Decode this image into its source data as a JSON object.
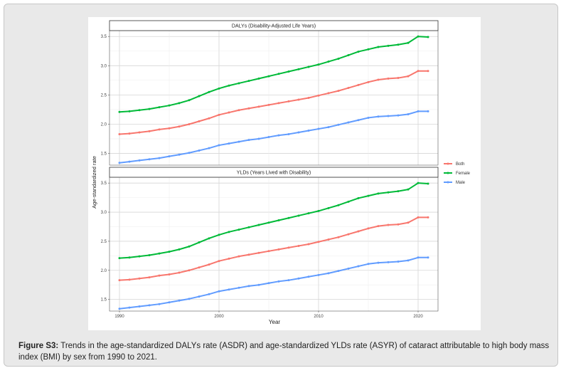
{
  "caption": {
    "label": "Figure S3:",
    "text": "Trends in the age-standardized DALYs rate (ASDR) and age-standardized YLDs rate (ASYR) of cataract attributable to high body mass index (BMI) by sex from 1990 to 2021."
  },
  "chart_data": {
    "type": "line",
    "ylabel": "Age-standardized rate",
    "xlabel": "Year",
    "x": [
      1990,
      1991,
      1992,
      1993,
      1994,
      1995,
      1996,
      1997,
      1998,
      1999,
      2000,
      2001,
      2002,
      2003,
      2004,
      2005,
      2006,
      2007,
      2008,
      2009,
      2010,
      2011,
      2012,
      2013,
      2014,
      2015,
      2016,
      2017,
      2018,
      2019,
      2020,
      2021
    ],
    "xlim": [
      1989,
      2022
    ],
    "xticks": [
      1990,
      2000,
      2010,
      2020
    ],
    "legend": {
      "placement": "right",
      "entries": [
        "Both",
        "Female",
        "Male"
      ]
    },
    "colors": {
      "Both": "#F8766D",
      "Female": "#00BA38",
      "Male": "#619CFF"
    },
    "grid": true,
    "panels": [
      {
        "title": "DALYs (Disability-Adjusted Life Years)",
        "ylim": [
          1.3,
          3.6
        ],
        "yticks": [
          1.5,
          2.0,
          2.5,
          3.0,
          3.5
        ],
        "series": [
          {
            "name": "Both",
            "values": [
              1.83,
              1.84,
              1.86,
              1.88,
              1.91,
              1.93,
              1.96,
              2.0,
              2.05,
              2.1,
              2.16,
              2.2,
              2.24,
              2.27,
              2.3,
              2.33,
              2.36,
              2.39,
              2.42,
              2.45,
              2.49,
              2.53,
              2.57,
              2.62,
              2.67,
              2.72,
              2.76,
              2.78,
              2.79,
              2.82,
              2.91,
              2.91
            ]
          },
          {
            "name": "Female",
            "values": [
              2.21,
              2.22,
              2.24,
              2.26,
              2.29,
              2.32,
              2.36,
              2.41,
              2.48,
              2.55,
              2.61,
              2.66,
              2.7,
              2.74,
              2.78,
              2.82,
              2.86,
              2.9,
              2.94,
              2.98,
              3.02,
              3.07,
              3.12,
              3.18,
              3.24,
              3.28,
              3.32,
              3.34,
              3.36,
              3.39,
              3.5,
              3.49
            ]
          },
          {
            "name": "Male",
            "values": [
              1.34,
              1.36,
              1.38,
              1.4,
              1.42,
              1.45,
              1.48,
              1.51,
              1.55,
              1.59,
              1.64,
              1.67,
              1.7,
              1.73,
              1.75,
              1.78,
              1.81,
              1.83,
              1.86,
              1.89,
              1.92,
              1.95,
              1.99,
              2.03,
              2.07,
              2.11,
              2.13,
              2.14,
              2.15,
              2.17,
              2.22,
              2.22
            ]
          }
        ]
      },
      {
        "title": "YLDs (Years Lived with Disability)",
        "ylim": [
          1.3,
          3.6
        ],
        "yticks": [
          1.5,
          2.0,
          2.5,
          3.0,
          3.5
        ],
        "series": [
          {
            "name": "Both",
            "values": [
              1.83,
              1.84,
              1.86,
              1.88,
              1.91,
              1.93,
              1.96,
              2.0,
              2.05,
              2.1,
              2.16,
              2.2,
              2.24,
              2.27,
              2.3,
              2.33,
              2.36,
              2.39,
              2.42,
              2.45,
              2.49,
              2.53,
              2.57,
              2.62,
              2.67,
              2.72,
              2.76,
              2.78,
              2.79,
              2.82,
              2.91,
              2.91
            ]
          },
          {
            "name": "Female",
            "values": [
              2.21,
              2.22,
              2.24,
              2.26,
              2.29,
              2.32,
              2.36,
              2.41,
              2.48,
              2.55,
              2.61,
              2.66,
              2.7,
              2.74,
              2.78,
              2.82,
              2.86,
              2.9,
              2.94,
              2.98,
              3.02,
              3.07,
              3.12,
              3.18,
              3.24,
              3.28,
              3.32,
              3.34,
              3.36,
              3.39,
              3.5,
              3.49
            ]
          },
          {
            "name": "Male",
            "values": [
              1.34,
              1.36,
              1.38,
              1.4,
              1.42,
              1.45,
              1.48,
              1.51,
              1.55,
              1.59,
              1.64,
              1.67,
              1.7,
              1.73,
              1.75,
              1.78,
              1.81,
              1.83,
              1.86,
              1.89,
              1.92,
              1.95,
              1.99,
              2.03,
              2.07,
              2.11,
              2.13,
              2.14,
              2.15,
              2.17,
              2.22,
              2.22
            ]
          }
        ]
      }
    ]
  }
}
